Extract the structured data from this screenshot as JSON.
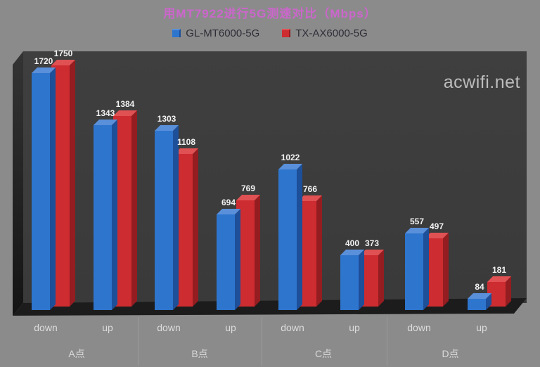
{
  "title": "用MT7922进行5G测速对比（Mbps）",
  "watermark": "acwifi.net",
  "colors": {
    "background": "#8b8b8b",
    "back_wall": "#3d3d3d",
    "floor": "#1c1c1c",
    "title_text": "#cc66cc",
    "axis_text": "#dcdcdc",
    "value_label_text": "#f2f2f2",
    "series1_front": "#2e75cd",
    "series1_top": "#5a90da",
    "series1_side": "#1e4f99",
    "series2_front": "#cd2c31",
    "series2_top": "#e05153",
    "series2_side": "#931d20"
  },
  "legend": {
    "items": [
      {
        "label": "GL-MT6000-5G",
        "color": "#2e75cd"
      },
      {
        "label": "TX-AX6000-5G",
        "color": "#cd2c31"
      }
    ]
  },
  "chart_data": {
    "type": "bar",
    "style": "3d",
    "title": "用MT7922进行5G测速对比（Mbps）",
    "unit": "Mbps",
    "legend_position": "top",
    "value_labels": true,
    "y_axis_visible": false,
    "groups": [
      "A点",
      "B点",
      "C点",
      "D点"
    ],
    "categories": [
      "down",
      "up",
      "down",
      "up",
      "down",
      "up",
      "down",
      "up"
    ],
    "series": [
      {
        "name": "GL-MT6000-5G",
        "color": "#2e75cd",
        "values": [
          1720,
          1343,
          1303,
          694,
          1022,
          400,
          557,
          84
        ]
      },
      {
        "name": "TX-AX6000-5G",
        "color": "#cd2c31",
        "values": [
          1750,
          1384,
          1108,
          769,
          766,
          373,
          497,
          181
        ]
      }
    ]
  }
}
